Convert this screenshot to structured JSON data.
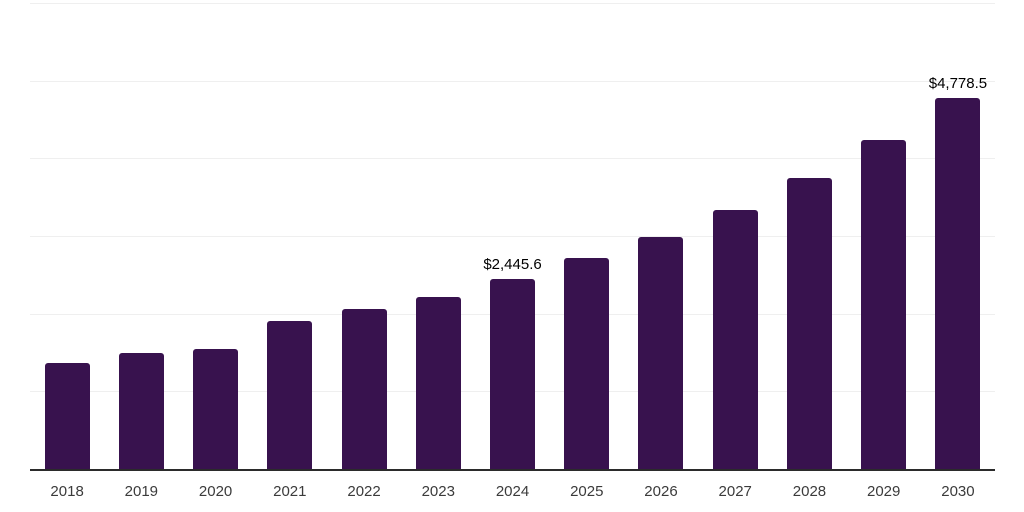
{
  "chart_data": {
    "type": "bar",
    "categories": [
      "2018",
      "2019",
      "2020",
      "2021",
      "2022",
      "2023",
      "2024",
      "2025",
      "2026",
      "2027",
      "2028",
      "2029",
      "2030"
    ],
    "values": [
      1360,
      1490,
      1550,
      1910,
      2065,
      2220,
      2445.6,
      2715,
      2985,
      3340,
      3750,
      4235,
      4778.5
    ],
    "annotations": [
      {
        "category": "2024",
        "text": "$2,445.6"
      },
      {
        "category": "2030",
        "text": "$4,778.5"
      }
    ],
    "ylim": [
      0,
      6000
    ],
    "grid_interval": 1000,
    "grid": "horizontal",
    "legend": "none",
    "y_axis_labels": "none",
    "currency_prefix": "$"
  },
  "colors": {
    "bar": "#38124e",
    "axis": "#2b2b2b",
    "gridline": "#efefef",
    "tick_label": "#3b3b3b",
    "annotation": "#000000",
    "background": "#ffffff"
  }
}
